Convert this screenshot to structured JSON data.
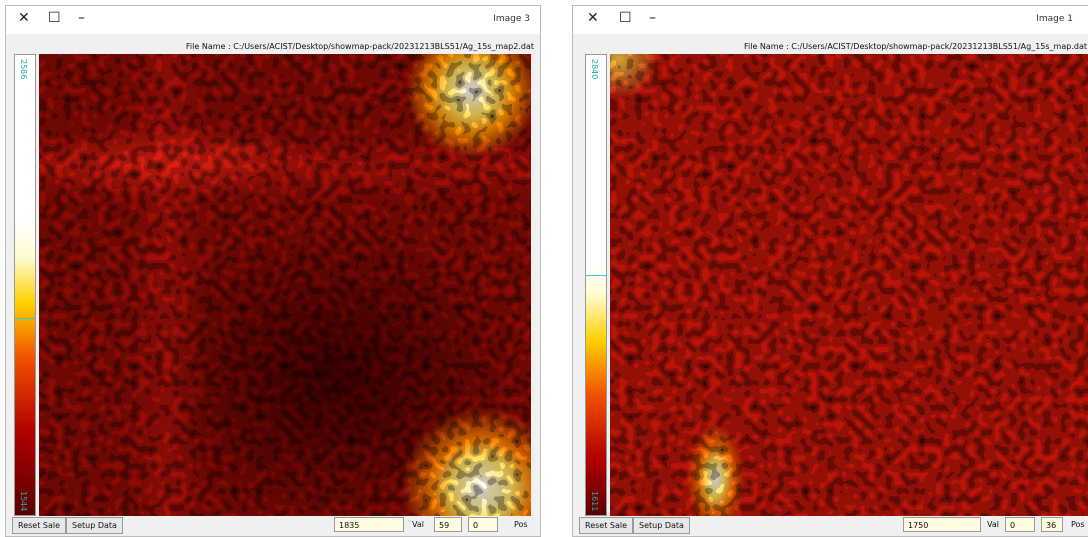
{
  "windows": [
    {
      "title": "Image 3",
      "file_name": "File Name : C:/Users/ACIST/Desktop/showmap-pack/20231213BLS51/Ag_15s_map2.dat",
      "scale_max": "2586",
      "scale_min": "1544",
      "reset_scale": "Reset Sale",
      "setup_data": "Setup Data",
      "pos_label": "Pos",
      "pos_x": "0",
      "pos_y": "59",
      "val_label": "Val",
      "val": "1835"
    },
    {
      "title": "Image 1",
      "file_name": "File Name : C:/Users/ACIST/Desktop/showmap-pack/20231213BLS51/Ag_15s_map.dat",
      "scale_max": "2840",
      "scale_min": "1611",
      "reset_scale": "Reset Sale",
      "setup_data": "Setup Data",
      "pos_label": "Pos",
      "pos_x": "36",
      "pos_y": "0",
      "val_label": "Val",
      "val": "1750"
    }
  ]
}
